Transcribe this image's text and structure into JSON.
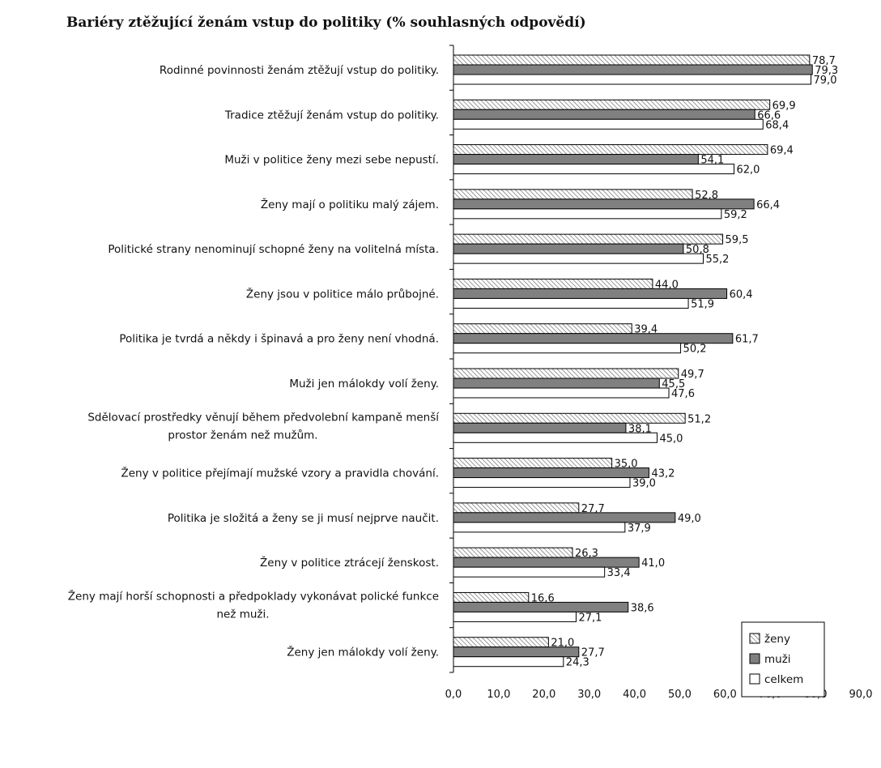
{
  "chart_data": {
    "type": "bar",
    "orientation": "horizontal",
    "title": "Bariéry ztěžující ženám vstup do politiky (% souhlasných odpovědí)",
    "xlabel": "",
    "ylabel": "",
    "xlim": [
      0,
      90
    ],
    "x_ticks": [
      "0,0",
      "10,0",
      "20,0",
      "30,0",
      "40,0",
      "50,0",
      "60,0",
      "70,0",
      "80,0",
      "90,0"
    ],
    "grid": false,
    "legend_position": "bottom-right",
    "categories": [
      [
        "Rodinné povinnosti ženám ztěžují vstup do politiky."
      ],
      [
        "Tradice ztěžují ženám vstup do politiky."
      ],
      [
        "Muži v politice ženy mezi sebe nepustí."
      ],
      [
        "Ženy mají o politiku malý zájem."
      ],
      [
        "Politické strany nenominují schopné ženy na volitelná místa."
      ],
      [
        "Ženy jsou v politice málo průbojné."
      ],
      [
        "Politika je tvrdá a někdy i špinavá a pro ženy není vhodná."
      ],
      [
        "Muži jen málokdy volí ženy."
      ],
      [
        "Sdělovací prostředky věnují během předvolební kampaně menší",
        "prostor ženám než mužům."
      ],
      [
        "Ženy v politice přejímají mužské vzory a pravidla chování."
      ],
      [
        "Politika je složitá a ženy se ji musí nejprve naučit."
      ],
      [
        "Ženy v politice ztrácejí ženskost."
      ],
      [
        "Ženy mají horší schopnosti a předpoklady vykonávat polické funkce",
        "než muži."
      ],
      [
        "Ženy jen málokdy volí ženy."
      ]
    ],
    "series": [
      {
        "name": "ženy",
        "pattern": "hatched",
        "values": [
          78.7,
          69.9,
          69.4,
          52.8,
          59.5,
          44.0,
          39.4,
          49.7,
          51.2,
          35.0,
          27.7,
          26.3,
          16.6,
          21.0
        ],
        "labels": [
          "78,7",
          "69,9",
          "69,4",
          "52,8",
          "59,5",
          "44,0",
          "39,4",
          "49,7",
          "51,2",
          "35,0",
          "27,7",
          "26,3",
          "16,6",
          "21,0"
        ]
      },
      {
        "name": "muži",
        "color": "#808080",
        "values": [
          79.3,
          66.6,
          54.1,
          66.4,
          50.8,
          60.4,
          61.7,
          45.5,
          38.1,
          43.2,
          49.0,
          41.0,
          38.6,
          27.7
        ],
        "labels": [
          "79,3",
          "66,6",
          "54,1",
          "66,4",
          "50,8",
          "60,4",
          "61,7",
          "45,5",
          "38,1",
          "43,2",
          "49,0",
          "41,0",
          "38,6",
          "27,7"
        ]
      },
      {
        "name": "celkem",
        "color": "#ffffff",
        "values": [
          79.0,
          68.4,
          62.0,
          59.2,
          55.2,
          51.9,
          50.2,
          47.6,
          45.0,
          39.0,
          37.9,
          33.4,
          27.1,
          24.3
        ],
        "labels": [
          "79,0",
          "68,4",
          "62,0",
          "59,2",
          "55,2",
          "51,9",
          "50,2",
          "47,6",
          "45,0",
          "39,0",
          "37,9",
          "33,4",
          "27,1",
          "24,3"
        ]
      }
    ]
  }
}
